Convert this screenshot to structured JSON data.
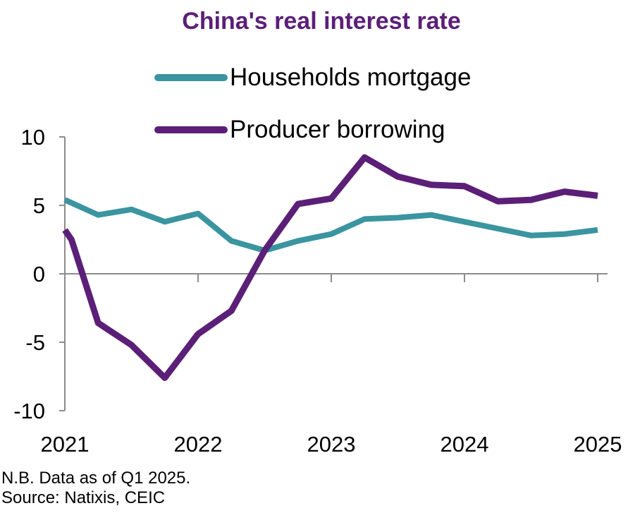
{
  "chart_data": {
    "type": "line",
    "title": "China's real interest rate",
    "title_color": "#5B1F78",
    "x_ticks": [
      "2021",
      "2022",
      "2023",
      "2024",
      "2025"
    ],
    "y_ticks": [
      10,
      5,
      0,
      -5,
      -10
    ],
    "ylim": [
      -10,
      10
    ],
    "xlim": [
      2021.0,
      2025.0
    ],
    "grid": false,
    "legend": "top",
    "series": [
      {
        "name": "Households mortgage",
        "color": "#3A95A0",
        "x": [
          2021.0,
          2021.25,
          2021.5,
          2021.75,
          2022.0,
          2022.25,
          2022.5,
          2022.75,
          2023.0,
          2023.25,
          2023.5,
          2023.75,
          2024.0,
          2024.25,
          2024.5,
          2024.75,
          2025.0
        ],
        "values": [
          5.4,
          4.3,
          4.7,
          3.8,
          4.4,
          2.4,
          1.7,
          2.4,
          2.9,
          4.0,
          4.1,
          4.3,
          3.8,
          3.3,
          2.8,
          2.9,
          3.2
        ]
      },
      {
        "name": "Producer borrowing",
        "color": "#5B1F78",
        "x": [
          2021.0,
          2021.05,
          2021.25,
          2021.5,
          2021.75,
          2022.0,
          2022.25,
          2022.5,
          2022.75,
          2023.0,
          2023.25,
          2023.5,
          2023.75,
          2024.0,
          2024.25,
          2024.5,
          2024.75,
          2025.0
        ],
        "values": [
          3.2,
          2.5,
          -3.6,
          -5.2,
          -7.6,
          -4.4,
          -2.7,
          1.7,
          5.1,
          5.5,
          8.5,
          7.1,
          6.5,
          6.4,
          5.3,
          5.4,
          6.0,
          5.7
        ]
      }
    ]
  },
  "footnote": {
    "line1": "N.B. Data as of Q1 2025.",
    "line2": "Source: Natixis, CEIC"
  }
}
